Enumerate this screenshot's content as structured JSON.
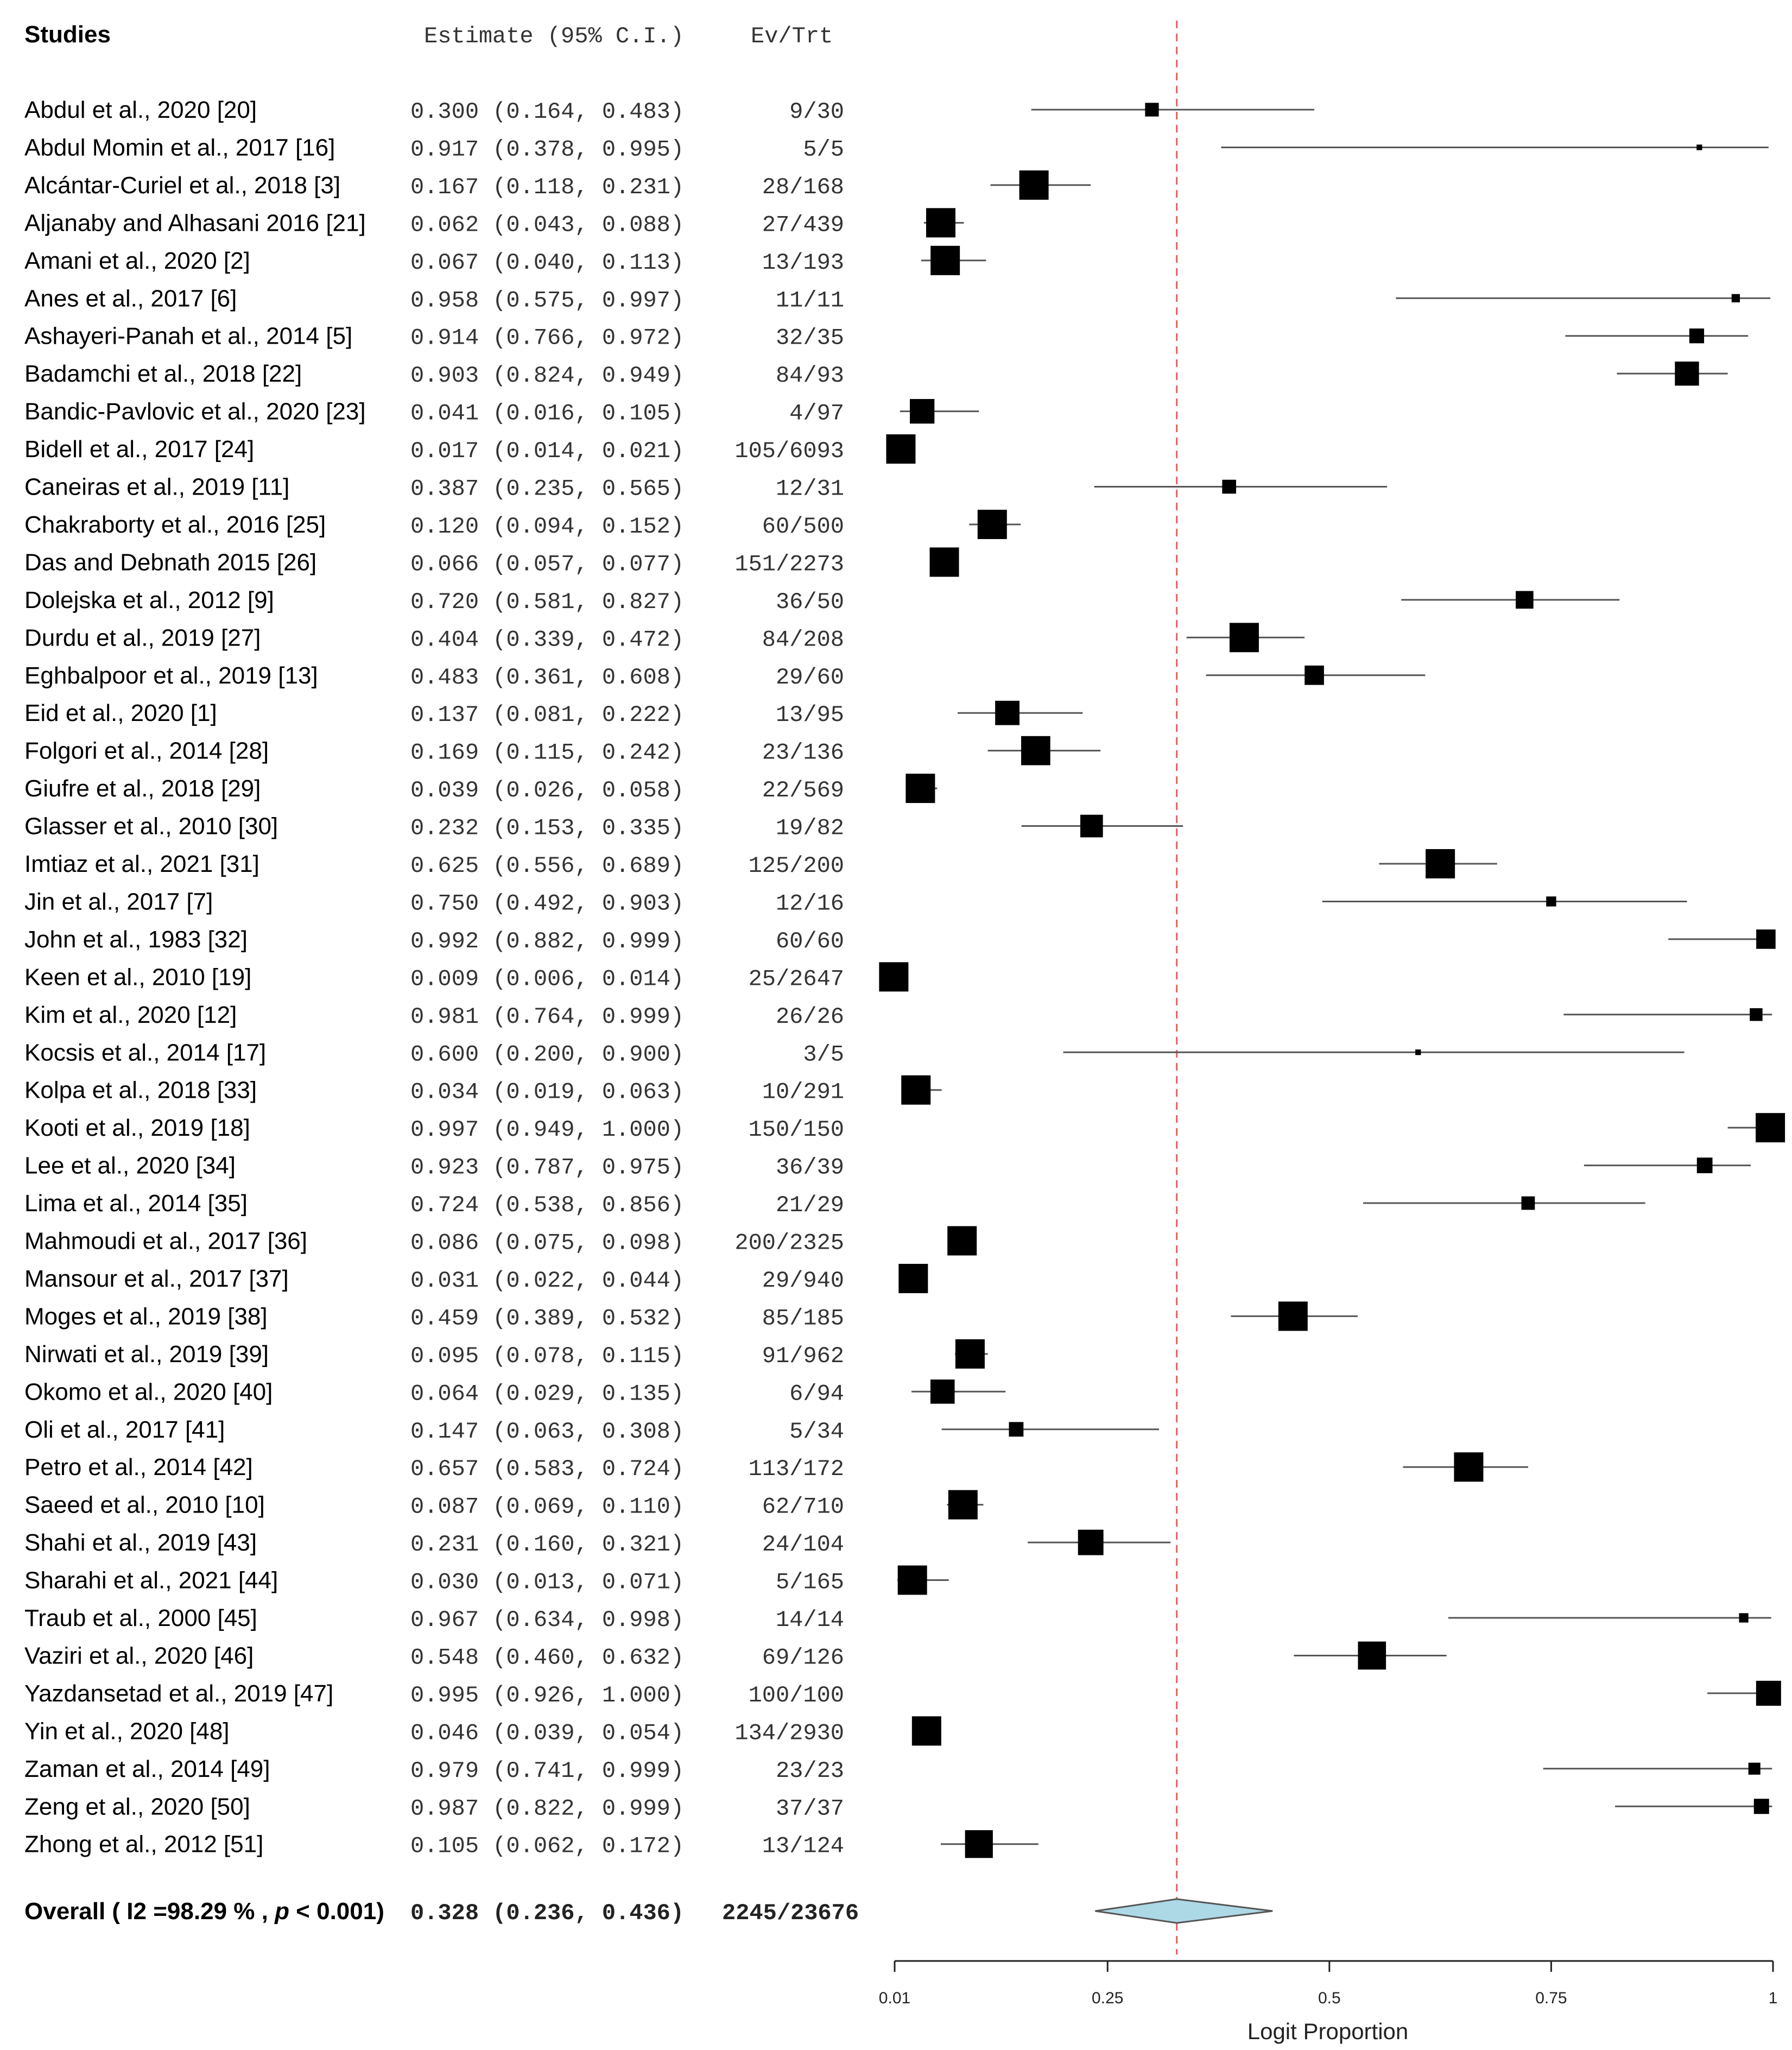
{
  "header": {
    "studies": "Studies",
    "estimate": "Estimate (95% C.I.)",
    "events": "Ev/Trt"
  },
  "overall": {
    "label_prefix": "Overall ( I2 =98.29 % , ",
    "label_p": "p",
    "label_suffix": " < 0.001)",
    "estimate": 0.328,
    "lower": 0.236,
    "upper": 0.436,
    "events": "2245/23676",
    "fill_color": "#add8e6"
  },
  "axis": {
    "title": "Logit Proportion",
    "ticks": [
      "0.01",
      "0.25",
      "0.5",
      "0.75",
      "1"
    ]
  },
  "colors": {
    "reference_line": "#e06060",
    "marker": "#000000",
    "text": "#000000",
    "mono_text": "#333333"
  },
  "chart_data": {
    "type": "forest",
    "scale": "logit proportion",
    "xlim": [
      0.01,
      1
    ],
    "reference_value": 0.328,
    "studies": [
      {
        "study": "Abdul et al., 2020 [20]",
        "est": 0.3,
        "lo": 0.164,
        "hi": 0.483,
        "ev_trt": "9/30",
        "n": 30
      },
      {
        "study": "Abdul Momin et al., 2017 [16]",
        "est": 0.917,
        "lo": 0.378,
        "hi": 0.995,
        "ev_trt": "5/5",
        "n": 5
      },
      {
        "study": "Alcántar-Curiel et al., 2018 [3]",
        "est": 0.167,
        "lo": 0.118,
        "hi": 0.231,
        "ev_trt": "28/168",
        "n": 168
      },
      {
        "study": "Aljanaby and Alhasani 2016 [21]",
        "est": 0.062,
        "lo": 0.043,
        "hi": 0.088,
        "ev_trt": "27/439",
        "n": 439
      },
      {
        "study": "Amani et al., 2020 [2]",
        "est": 0.067,
        "lo": 0.04,
        "hi": 0.113,
        "ev_trt": "13/193",
        "n": 193
      },
      {
        "study": "Anes et al., 2017 [6]",
        "est": 0.958,
        "lo": 0.575,
        "hi": 0.997,
        "ev_trt": "11/11",
        "n": 11
      },
      {
        "study": "Ashayeri-Panah et al., 2014 [5]",
        "est": 0.914,
        "lo": 0.766,
        "hi": 0.972,
        "ev_trt": "32/35",
        "n": 35
      },
      {
        "study": "Badamchi et al., 2018 [22]",
        "est": 0.903,
        "lo": 0.824,
        "hi": 0.949,
        "ev_trt": "84/93",
        "n": 93
      },
      {
        "study": "Bandic-Pavlovic et al., 2020 [23]",
        "est": 0.041,
        "lo": 0.016,
        "hi": 0.105,
        "ev_trt": "4/97",
        "n": 97
      },
      {
        "study": "Bidell et al., 2017 [24]",
        "est": 0.017,
        "lo": 0.014,
        "hi": 0.021,
        "ev_trt": "105/6093",
        "n": 6093
      },
      {
        "study": "Caneiras et al., 2019 [11]",
        "est": 0.387,
        "lo": 0.235,
        "hi": 0.565,
        "ev_trt": "12/31",
        "n": 31
      },
      {
        "study": "Chakraborty et al., 2016 [25]",
        "est": 0.12,
        "lo": 0.094,
        "hi": 0.152,
        "ev_trt": "60/500",
        "n": 500
      },
      {
        "study": "Das and Debnath 2015 [26]",
        "est": 0.066,
        "lo": 0.057,
        "hi": 0.077,
        "ev_trt": "151/2273",
        "n": 2273
      },
      {
        "study": "Dolejska et al., 2012 [9]",
        "est": 0.72,
        "lo": 0.581,
        "hi": 0.827,
        "ev_trt": "36/50",
        "n": 50
      },
      {
        "study": "Durdu et al., 2019 [27]",
        "est": 0.404,
        "lo": 0.339,
        "hi": 0.472,
        "ev_trt": "84/208",
        "n": 208
      },
      {
        "study": "Eghbalpoor et al., 2019 [13]",
        "est": 0.483,
        "lo": 0.361,
        "hi": 0.608,
        "ev_trt": "29/60",
        "n": 60
      },
      {
        "study": "Eid et al., 2020 [1]",
        "est": 0.137,
        "lo": 0.081,
        "hi": 0.222,
        "ev_trt": "13/95",
        "n": 95
      },
      {
        "study": "Folgori et al., 2014 [28]",
        "est": 0.169,
        "lo": 0.115,
        "hi": 0.242,
        "ev_trt": "23/136",
        "n": 136
      },
      {
        "study": "Giufre et al., 2018 [29]",
        "est": 0.039,
        "lo": 0.026,
        "hi": 0.058,
        "ev_trt": "22/569",
        "n": 569
      },
      {
        "study": "Glasser et al., 2010 [30]",
        "est": 0.232,
        "lo": 0.153,
        "hi": 0.335,
        "ev_trt": "19/82",
        "n": 82
      },
      {
        "study": "Imtiaz et al., 2021 [31]",
        "est": 0.625,
        "lo": 0.556,
        "hi": 0.689,
        "ev_trt": "125/200",
        "n": 200
      },
      {
        "study": "Jin et al., 2017 [7]",
        "est": 0.75,
        "lo": 0.492,
        "hi": 0.903,
        "ev_trt": "12/16",
        "n": 16
      },
      {
        "study": "John et al., 1983 [32]",
        "est": 0.992,
        "lo": 0.882,
        "hi": 0.999,
        "ev_trt": "60/60",
        "n": 60
      },
      {
        "study": "Keen et al., 2010 [19]",
        "est": 0.009,
        "lo": 0.006,
        "hi": 0.014,
        "ev_trt": "25/2647",
        "n": 2647
      },
      {
        "study": "Kim et al., 2020 [12]",
        "est": 0.981,
        "lo": 0.764,
        "hi": 0.999,
        "ev_trt": "26/26",
        "n": 26
      },
      {
        "study": "Kocsis et al., 2014 [17]",
        "est": 0.6,
        "lo": 0.2,
        "hi": 0.9,
        "ev_trt": "3/5",
        "n": 5
      },
      {
        "study": "Kolpa et al., 2018 [33]",
        "est": 0.034,
        "lo": 0.019,
        "hi": 0.063,
        "ev_trt": "10/291",
        "n": 291
      },
      {
        "study": "Kooti et al., 2019 [18]",
        "est": 0.997,
        "lo": 0.949,
        "hi": 1.0,
        "ev_trt": "150/150",
        "n": 150
      },
      {
        "study": "Lee et al., 2020 [34]",
        "est": 0.923,
        "lo": 0.787,
        "hi": 0.975,
        "ev_trt": "36/39",
        "n": 39
      },
      {
        "study": "Lima et al., 2014 [35]",
        "est": 0.724,
        "lo": 0.538,
        "hi": 0.856,
        "ev_trt": "21/29",
        "n": 29
      },
      {
        "study": "Mahmoudi et al., 2017 [36]",
        "est": 0.086,
        "lo": 0.075,
        "hi": 0.098,
        "ev_trt": "200/2325",
        "n": 2325
      },
      {
        "study": "Mansour et al., 2017 [37]",
        "est": 0.031,
        "lo": 0.022,
        "hi": 0.044,
        "ev_trt": "29/940",
        "n": 940
      },
      {
        "study": "Moges et al., 2019 [38]",
        "est": 0.459,
        "lo": 0.389,
        "hi": 0.532,
        "ev_trt": "85/185",
        "n": 185
      },
      {
        "study": "Nirwati et al., 2019 [39]",
        "est": 0.095,
        "lo": 0.078,
        "hi": 0.115,
        "ev_trt": "91/962",
        "n": 962
      },
      {
        "study": "Okomo et al., 2020 [40]",
        "est": 0.064,
        "lo": 0.029,
        "hi": 0.135,
        "ev_trt": "6/94",
        "n": 94
      },
      {
        "study": "Oli et al., 2017 [41]",
        "est": 0.147,
        "lo": 0.063,
        "hi": 0.308,
        "ev_trt": "5/34",
        "n": 34
      },
      {
        "study": "Petro et al., 2014 [42]",
        "est": 0.657,
        "lo": 0.583,
        "hi": 0.724,
        "ev_trt": "113/172",
        "n": 172
      },
      {
        "study": "Saeed et al., 2010 [10]",
        "est": 0.087,
        "lo": 0.069,
        "hi": 0.11,
        "ev_trt": "62/710",
        "n": 710
      },
      {
        "study": "Shahi et al., 2019 [43]",
        "est": 0.231,
        "lo": 0.16,
        "hi": 0.321,
        "ev_trt": "24/104",
        "n": 104
      },
      {
        "study": "Sharahi et al., 2021 [44]",
        "est": 0.03,
        "lo": 0.013,
        "hi": 0.071,
        "ev_trt": "5/165",
        "n": 165
      },
      {
        "study": "Traub et al., 2000 [45]",
        "est": 0.967,
        "lo": 0.634,
        "hi": 0.998,
        "ev_trt": "14/14",
        "n": 14
      },
      {
        "study": "Vaziri et al., 2020 [46]",
        "est": 0.548,
        "lo": 0.46,
        "hi": 0.632,
        "ev_trt": "69/126",
        "n": 126
      },
      {
        "study": "Yazdansetad et al.,  2019 [47]",
        "est": 0.995,
        "lo": 0.926,
        "hi": 1.0,
        "ev_trt": "100/100",
        "n": 100
      },
      {
        "study": "Yin et al., 2020 [48]",
        "est": 0.046,
        "lo": 0.039,
        "hi": 0.054,
        "ev_trt": "134/2930",
        "n": 2930
      },
      {
        "study": "Zaman et al., 2014 [49]",
        "est": 0.979,
        "lo": 0.741,
        "hi": 0.999,
        "ev_trt": "23/23",
        "n": 23
      },
      {
        "study": "Zeng et al., 2020 [50]",
        "est": 0.987,
        "lo": 0.822,
        "hi": 0.999,
        "ev_trt": "37/37",
        "n": 37
      },
      {
        "study": "Zhong et al., 2012 [51]",
        "est": 0.105,
        "lo": 0.062,
        "hi": 0.172,
        "ev_trt": "13/124",
        "n": 124
      }
    ]
  }
}
